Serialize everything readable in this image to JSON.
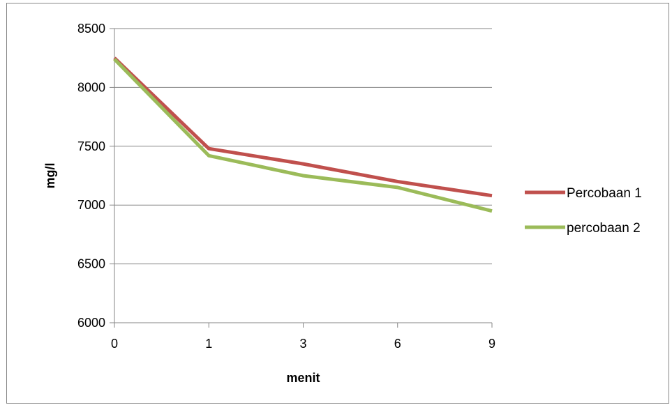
{
  "chart_data": {
    "type": "line",
    "title": "",
    "xlabel": "menit",
    "ylabel": "mg/l",
    "categories": [
      "0",
      "1",
      "3",
      "6",
      "9"
    ],
    "ylim": [
      6000,
      8500
    ],
    "yticks": [
      6000,
      6500,
      7000,
      7500,
      8000,
      8500
    ],
    "grid": "horizontal",
    "legend_position": "right",
    "series": [
      {
        "name": "Percobaan 1",
        "color": "#C0504D",
        "values": [
          8250,
          7480,
          7350,
          7200,
          7080
        ]
      },
      {
        "name": "percobaan 2",
        "color": "#9BBB59",
        "values": [
          8240,
          7420,
          7250,
          7150,
          6950
        ]
      }
    ]
  }
}
